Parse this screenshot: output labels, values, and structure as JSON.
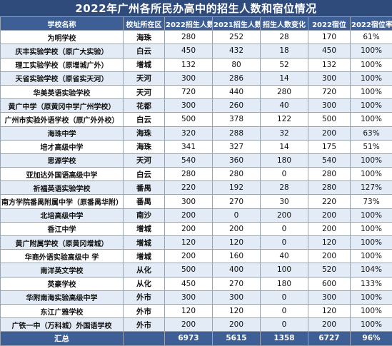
{
  "title": "2022年广州各所民办高中的招生人数和宿位情况",
  "columns": [
    "学校名称",
    "校址所在区",
    "2022招生人数",
    "2021招生人数",
    "招生人数变化",
    "2022宿位",
    "2022宿位率"
  ],
  "rows": [
    [
      "为明学校",
      "海珠",
      "280",
      "252",
      "28",
      "170",
      "61%"
    ],
    [
      "庆丰实验学校（原广大实验）",
      "白云",
      "450",
      "432",
      "18",
      "450",
      "100%"
    ],
    [
      "理工实验学校（原增城广外）",
      "增城",
      "132",
      "80",
      "52",
      "132",
      "100%"
    ],
    [
      "天省实验学校（原省实天河）",
      "天河",
      "300",
      "286",
      "14",
      "300",
      "100%"
    ],
    [
      "华美英语实验学校",
      "天河",
      "720",
      "440",
      "280",
      "720",
      "100%"
    ],
    [
      "黄广中学（原黄冈中学广州学校）",
      "花都",
      "300",
      "260",
      "40",
      "300",
      "100%"
    ],
    [
      "广州市实验外语学校（原广外外校）",
      "白云",
      "500",
      "378",
      "122",
      "500",
      "100%"
    ],
    [
      "海珠中学",
      "海珠",
      "320",
      "288",
      "32",
      "200",
      "63%"
    ],
    [
      "培才高级中学",
      "海珠",
      "341",
      "327",
      "14",
      "175",
      "51%"
    ],
    [
      "思源学校",
      "天河",
      "540",
      "360",
      "180",
      "540",
      "100%"
    ],
    [
      "亚加达外国语高级中学",
      "白云",
      "280",
      "280",
      "0",
      "280",
      "100%"
    ],
    [
      "祈福英语实验学校",
      "番禺",
      "220",
      "192",
      "28",
      "280",
      "127%"
    ],
    [
      "南方学院番禺附属中学（原番禺华附）",
      "番禺",
      "300",
      "270",
      "30",
      "220",
      "73%"
    ],
    [
      "北培高级中学",
      "南沙",
      "200",
      "0",
      "200",
      "200",
      "100%"
    ],
    [
      "香江中学",
      "增城",
      "200",
      "200",
      "0",
      "200",
      "100%"
    ],
    [
      "黄广附属学校（原黄冈增城）",
      "增城",
      "120",
      "120",
      "0",
      "120",
      "100%"
    ],
    [
      "华商外语实验高级中 学",
      "增城",
      "200",
      "160",
      "40",
      "200",
      "100%"
    ],
    [
      "南洋英文学校",
      "从化",
      "500",
      "400",
      "100",
      "520",
      "104%"
    ],
    [
      "英豪学校",
      "从化",
      "450",
      "270",
      "180",
      "600",
      "133%"
    ],
    [
      "华附南海实验高级中学",
      "外市",
      "300",
      "300",
      "0",
      "300",
      "100%"
    ],
    [
      "东江广雅学校",
      "外市",
      "120",
      "120",
      "0",
      "120",
      "100%"
    ],
    [
      "广铁一中（万科城）外国语学校",
      "外市",
      "200",
      "200",
      "0",
      "200",
      "100%"
    ]
  ],
  "total": [
    "汇总",
    "",
    "6973",
    "5615",
    "1358",
    "6727",
    "96%"
  ],
  "colors": {
    "header_bg": "#3e5f96",
    "title_bg": "#2f4b7c",
    "stripe": "#e3ebf6"
  }
}
